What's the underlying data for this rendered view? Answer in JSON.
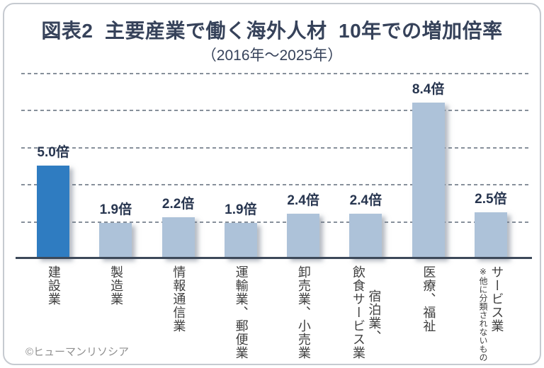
{
  "header": {
    "title": "図表2  主要産業で働く海外人材  10年での増加倍率",
    "subtitle": "（2016年～2025年）"
  },
  "footer": {
    "credit": "©ヒューマンリソシア"
  },
  "chart_data": {
    "type": "bar",
    "title": "図表2  主要産業で働く海外人材  10年での増加倍率",
    "subtitle": "（2016年～2025年）",
    "categories": [
      "建設業",
      "製造業",
      "情報通信業",
      "運輸業、郵便業",
      "卸売業、小売業",
      "宿泊業、飲食サービス業",
      "医療、福祉",
      "サービス業（※他に分類されないもの）"
    ],
    "values": [
      5.0,
      1.9,
      2.2,
      1.9,
      2.4,
      2.4,
      8.4,
      2.5
    ],
    "value_labels": [
      "5.0倍",
      "1.9倍",
      "2.2倍",
      "1.9倍",
      "2.4倍",
      "2.4倍",
      "8.4倍",
      "2.5倍"
    ],
    "category_columns": [
      [
        "建設業"
      ],
      [
        "製造業"
      ],
      [
        "情報通信業"
      ],
      [
        "運輸業、郵便業"
      ],
      [
        "卸売業、小売業"
      ],
      [
        "宿泊業、",
        "飲食サービス業"
      ],
      [
        "医療、福祉"
      ],
      [
        "サービス業",
        "※他に分類されないもの"
      ]
    ],
    "unit": "倍",
    "ylim": [
      0,
      10
    ],
    "gridline_values": [
      2,
      4,
      6,
      8,
      10
    ],
    "grid_style": "horizontal-dashed",
    "legend": "none",
    "highlight_index": 0,
    "colors": {
      "highlight_bar": "#2f7cc1",
      "bar": "#adc2d9",
      "gridline": "#87909b",
      "axis": "#3c4859",
      "title": "#36425a",
      "value_label": "#27354f",
      "category_label": "#3f3f3f",
      "credit": "#8f8f8f",
      "frame_border": "#c6cad0",
      "background": "#ffffff"
    }
  }
}
